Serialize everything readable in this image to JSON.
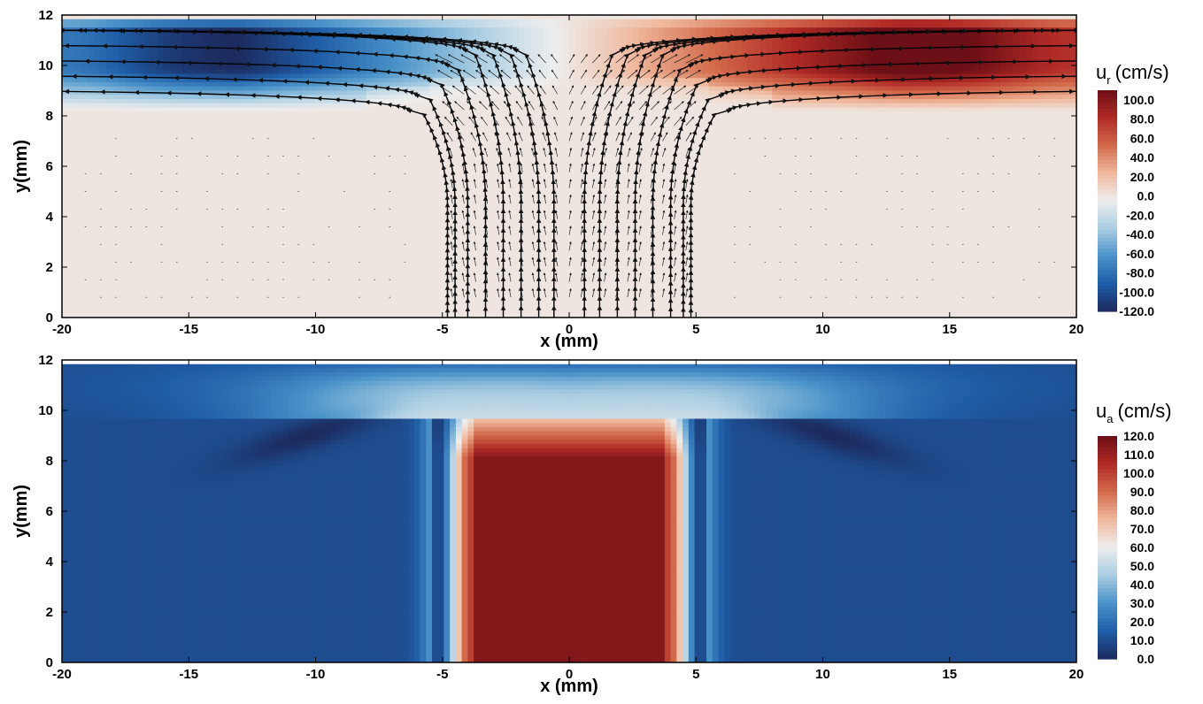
{
  "chart_data": [
    {
      "type": "heatmap",
      "title": "",
      "xlabel": "x (mm)",
      "ylabel": "y(mm)",
      "xlim": [
        -20,
        20
      ],
      "ylim": [
        0,
        12
      ],
      "xticks": [
        "-20",
        "-15",
        "-10",
        "-5",
        "0",
        "5",
        "10",
        "15",
        "20"
      ],
      "yticks": [
        "0",
        "2",
        "4",
        "6",
        "8",
        "10",
        "12"
      ],
      "colorbar": {
        "var": "u",
        "sub": "r",
        "unit": "(cm/s)",
        "ticks": [
          "100.0",
          "80.0",
          "60.0",
          "40.0",
          "20.0",
          "0.0",
          "-20.0",
          "-40.0",
          "-60.0",
          "-80.0",
          "-100.0",
          "-120.0"
        ],
        "range": [
          -120,
          110
        ],
        "colors": [
          "#1c2a5e",
          "#1f5ea8",
          "#4a93c9",
          "#a9cde2",
          "#eeeeee",
          "#f0b89c",
          "#d26a4b",
          "#b02a26",
          "#6d0f16"
        ]
      },
      "jet": {
        "half_width_mm": [
          4.8,
          4.5,
          4.0,
          3.3,
          2.6,
          1.9,
          1.2,
          0.6
        ],
        "contraction_start_y_mm": 4.5
      },
      "radial_flow": {
        "layer_y_mm": [
          9.0,
          9.6,
          10.2,
          10.8,
          11.4
        ],
        "peak_magnitude_cm_s": 120,
        "peak_x_mm": 13
      },
      "streamlines": true,
      "vector_field": true
    },
    {
      "type": "heatmap",
      "title": "",
      "xlabel": "x (mm)",
      "ylabel": "y(mm)",
      "xlim": [
        -20,
        20
      ],
      "ylim": [
        0,
        12
      ],
      "xticks": [
        "-20",
        "-15",
        "-10",
        "-5",
        "0",
        "5",
        "10",
        "15",
        "20"
      ],
      "yticks": [
        "0",
        "2",
        "4",
        "6",
        "8",
        "10",
        "12"
      ],
      "colorbar": {
        "var": "u",
        "sub": "a",
        "unit": "(cm/s)",
        "ticks": [
          "120.0",
          "110.0",
          "100.0",
          "90.0",
          "80.0",
          "70.0",
          "60.0",
          "50.0",
          "40.0",
          "30.0",
          "20.0",
          "10.0",
          "0.0"
        ],
        "range": [
          0,
          120
        ],
        "colors": [
          "#1c2a5e",
          "#1f5ea8",
          "#4a93c9",
          "#a9cde2",
          "#eeeeee",
          "#f0b89c",
          "#d26a4b",
          "#b02a26",
          "#6d0f16"
        ]
      },
      "jet": {
        "core_speed_cm_s": 115,
        "edge_speed_cm_s": 55,
        "half_width_mm": 5.0,
        "core_top_y_mm": 9.6
      },
      "background_speed_cm_s": 10
    }
  ]
}
